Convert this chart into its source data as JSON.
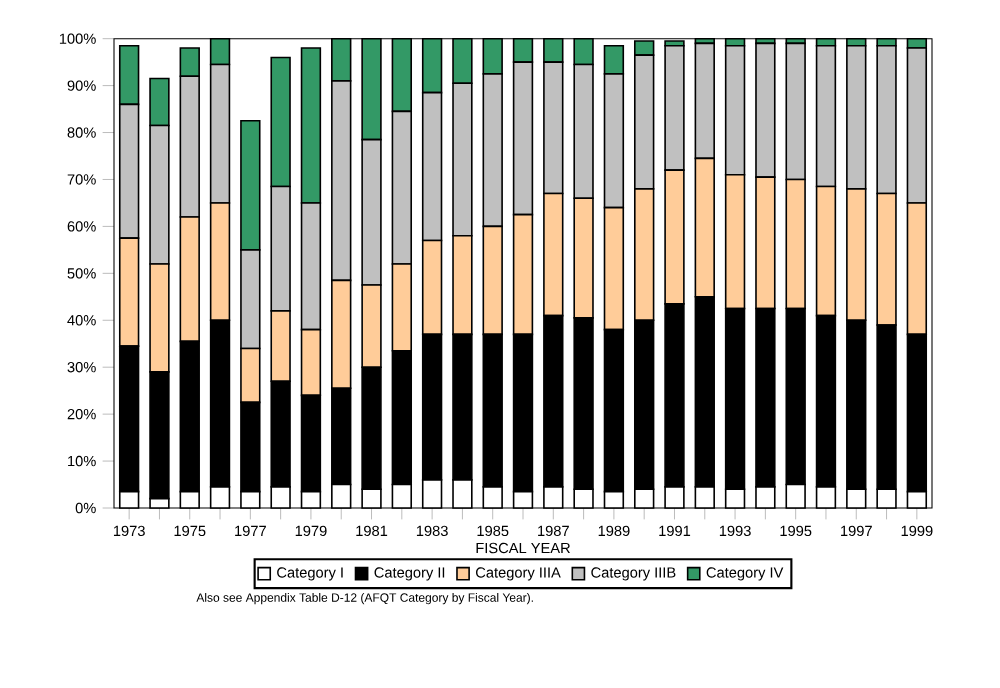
{
  "chart_data": {
    "type": "bar",
    "stacked": true,
    "xlabel": "FISCAL YEAR",
    "legend": "bottom",
    "categories": [
      "1973",
      null,
      "1975",
      null,
      "1977",
      null,
      "1979",
      null,
      "1981",
      null,
      "1983",
      null,
      "1985",
      null,
      "1987",
      null,
      "1989",
      null,
      "1991",
      null,
      "1993",
      null,
      "1995",
      null,
      "1997",
      null,
      "1999"
    ],
    "ylim": [
      0,
      100
    ],
    "yticks": [
      {
        "value": 0,
        "label": "0%"
      },
      {
        "value": 10,
        "label": "10%"
      },
      {
        "value": 20,
        "label": "20%"
      },
      {
        "value": 30,
        "label": "30%"
      },
      {
        "value": 40,
        "label": "40%"
      },
      {
        "value": 50,
        "label": "50%"
      },
      {
        "value": 60,
        "label": "60%"
      },
      {
        "value": 70,
        "label": "70%"
      },
      {
        "value": 80,
        "label": "80%"
      },
      {
        "value": 90,
        "label": "90%"
      },
      {
        "value": 100,
        "label": "100%"
      }
    ],
    "series": [
      {
        "name": "Category I",
        "color": "#ffffff",
        "values": [
          3.5,
          2,
          3.5,
          4.5,
          3.5,
          4.5,
          3.5,
          5,
          4,
          5,
          6,
          6,
          4.5,
          3.5,
          4.5,
          4,
          3.5,
          4,
          4.5,
          4.5,
          4,
          4.5,
          5,
          4.5,
          4,
          4,
          3.5
        ]
      },
      {
        "name": "Category II",
        "color": "#000000",
        "values": [
          31,
          27,
          32,
          35.5,
          19,
          22.5,
          20.5,
          20.5,
          26,
          28.5,
          31,
          31,
          32.5,
          33.5,
          36.5,
          36.5,
          34.5,
          36,
          39,
          40.5,
          38.5,
          38,
          37.5,
          36.5,
          36,
          35,
          33.5
        ]
      },
      {
        "name": "Category IIIA",
        "color": "#ffcc99",
        "values": [
          23,
          23,
          26.5,
          25,
          11.5,
          15,
          14,
          23,
          17.5,
          18.5,
          20,
          21,
          23,
          25.5,
          26,
          25.5,
          26,
          28,
          28.5,
          29.5,
          28.5,
          28,
          27.5,
          27.5,
          28,
          28,
          28
        ]
      },
      {
        "name": "Category IIIB",
        "color": "#c0c0c0",
        "values": [
          28.5,
          29.5,
          30,
          29.5,
          21,
          26.5,
          27,
          42.5,
          31,
          32.5,
          31.5,
          32.5,
          32.5,
          32.5,
          28,
          28.5,
          28.5,
          28.5,
          26.5,
          24.5,
          27.5,
          28.5,
          29,
          30,
          30.5,
          31.5,
          33
        ]
      },
      {
        "name": "Category IV",
        "color": "#339966",
        "values": [
          12.5,
          10,
          6,
          5.5,
          27.5,
          27.5,
          33,
          9,
          21.5,
          15.5,
          11.5,
          9.5,
          7.5,
          5,
          5,
          5.5,
          6,
          3,
          1,
          1,
          1.5,
          1,
          1,
          1.5,
          1.5,
          1.5,
          2
        ]
      }
    ],
    "annotations": [
      "Also see Appendix Table D-12 (AFQT Category by Fiscal Year)."
    ]
  }
}
